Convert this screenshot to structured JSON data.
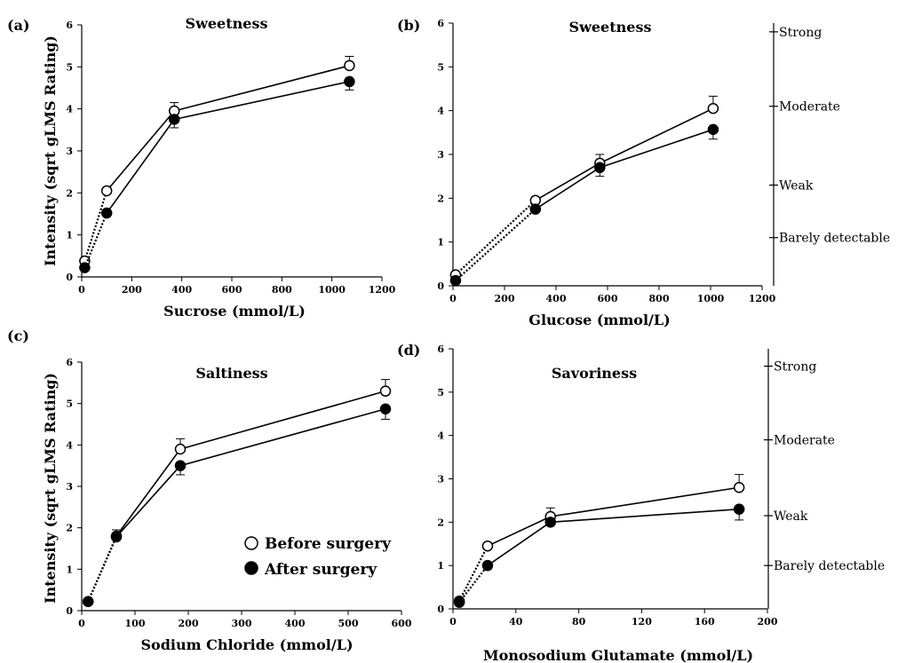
{
  "legend": {
    "before_label": "Before surgery",
    "after_label": "After surgery"
  },
  "chart_data": [
    {
      "type": "line",
      "panel": "(a)",
      "title": "Sweetness",
      "xlabel": "Sucrose (mmol/L)",
      "ylabel": "Intensity (sqrt gLMS Rating)",
      "xlim": [
        0,
        1200
      ],
      "ylim": [
        0,
        6
      ],
      "xticks": [
        0,
        200,
        400,
        600,
        800,
        1000,
        1200
      ],
      "yticks": [
        0,
        1,
        2,
        3,
        4,
        5,
        6
      ],
      "dotted_segments": 1,
      "series": [
        {
          "name": "Before surgery",
          "marker": "open-circle",
          "x": [
            12,
            100,
            370,
            1070
          ],
          "y": [
            0.38,
            2.05,
            3.95,
            5.03
          ],
          "err": [
            0,
            0,
            0.2,
            0.22
          ]
        },
        {
          "name": "After surgery",
          "marker": "filled-circle",
          "x": [
            12,
            100,
            370,
            1070
          ],
          "y": [
            0.22,
            1.52,
            3.75,
            4.65
          ],
          "err": [
            0,
            0,
            0.2,
            0.2
          ]
        }
      ],
      "side_scale": []
    },
    {
      "type": "line",
      "panel": "(b)",
      "title": "Sweetness",
      "xlabel": "Glucose (mmol/L)",
      "ylabel": "",
      "xlim": [
        0,
        1200
      ],
      "ylim": [
        0,
        6
      ],
      "xticks": [
        0,
        200,
        400,
        600,
        800,
        1000,
        1200
      ],
      "yticks": [
        0,
        1,
        2,
        3,
        4,
        5,
        6
      ],
      "dotted_segments": 1,
      "series": [
        {
          "name": "Before surgery",
          "marker": "open-circle",
          "x": [
            10,
            320,
            570,
            1010
          ],
          "y": [
            0.25,
            1.95,
            2.8,
            4.05
          ],
          "err": [
            0,
            0,
            0.2,
            0.28
          ]
        },
        {
          "name": "After surgery",
          "marker": "filled-circle",
          "x": [
            10,
            320,
            570,
            1010
          ],
          "y": [
            0.12,
            1.75,
            2.7,
            3.57
          ],
          "err": [
            0,
            0,
            0.2,
            0.22
          ]
        }
      ],
      "side_scale": [
        {
          "label": "Strong",
          "y": 5.8
        },
        {
          "label": "Moderate",
          "y": 4.1
        },
        {
          "label": "Weak",
          "y": 2.3
        },
        {
          "label": "Barely detectable",
          "y": 1.1
        }
      ]
    },
    {
      "type": "line",
      "panel": "(c)",
      "title": "Saltiness",
      "xlabel": "Sodium Chloride (mmol/L)",
      "ylabel": "Intensity (sqrt gLMS Rating)",
      "xlim": [
        0,
        600
      ],
      "ylim": [
        0,
        6
      ],
      "xticks": [
        0,
        100,
        200,
        300,
        400,
        500,
        600
      ],
      "yticks": [
        0,
        1,
        2,
        3,
        4,
        5,
        6
      ],
      "dotted_segments": 1,
      "series": [
        {
          "name": "Before surgery",
          "marker": "open-circle",
          "x": [
            12,
            65,
            185,
            570
          ],
          "y": [
            0.22,
            1.8,
            3.9,
            5.3
          ],
          "err": [
            0,
            0.15,
            0.25,
            0.28
          ]
        },
        {
          "name": "After surgery",
          "marker": "filled-circle",
          "x": [
            12,
            65,
            185,
            570
          ],
          "y": [
            0.22,
            1.78,
            3.5,
            4.87
          ],
          "err": [
            0,
            0,
            0.22,
            0.25
          ]
        }
      ],
      "side_scale": []
    },
    {
      "type": "line",
      "panel": "(d)",
      "title": "Savoriness",
      "xlabel": "Monosodium Glutamate (mmol/L)",
      "ylabel": "",
      "xlim": [
        0,
        200
      ],
      "ylim": [
        0,
        6
      ],
      "xticks": [
        0,
        40,
        80,
        120,
        160,
        200
      ],
      "yticks": [
        0,
        1,
        2,
        3,
        4,
        5,
        6
      ],
      "dotted_segments": 1,
      "series": [
        {
          "name": "Before surgery",
          "marker": "open-circle",
          "x": [
            4,
            22,
            62,
            182
          ],
          "y": [
            0.18,
            1.45,
            2.13,
            2.8
          ],
          "err": [
            0,
            0,
            0.2,
            0.3
          ]
        },
        {
          "name": "After surgery",
          "marker": "filled-circle",
          "x": [
            4,
            22,
            62,
            182
          ],
          "y": [
            0.15,
            1.0,
            2.0,
            2.3
          ],
          "err": [
            0,
            0,
            0,
            0.25
          ]
        }
      ],
      "side_scale": [
        {
          "label": "Strong",
          "y": 5.6
        },
        {
          "label": "Moderate",
          "y": 3.9
        },
        {
          "label": "Weak",
          "y": 2.15
        },
        {
          "label": "Barely detectable",
          "y": 1.0
        }
      ]
    }
  ]
}
